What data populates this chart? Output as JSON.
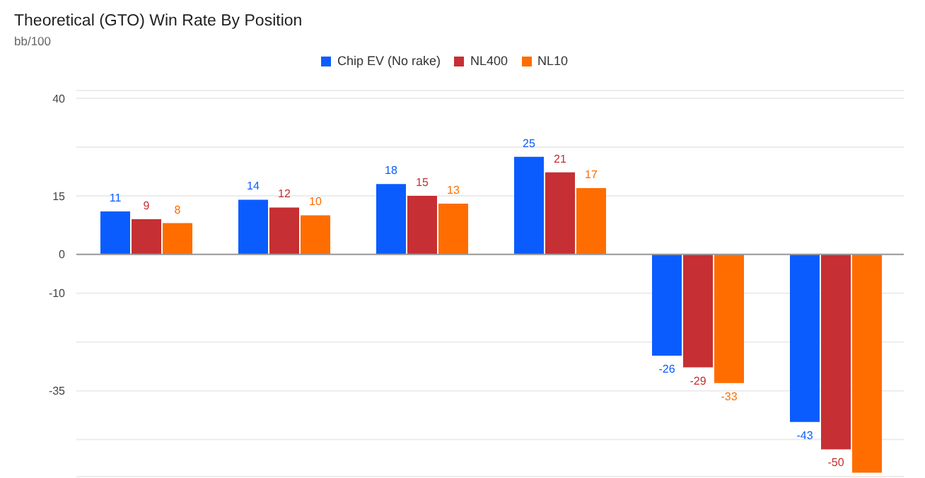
{
  "chart_data": {
    "type": "bar",
    "title": "Theoretical (GTO) Win Rate By Position",
    "subtitle": "bb/100",
    "categories": [
      null,
      null,
      null,
      null,
      null,
      null
    ],
    "series": [
      {
        "name": "Chip EV (No rake)",
        "color": "#0b5cff",
        "values": [
          11,
          14,
          18,
          25,
          -26,
          -43
        ],
        "value_labels": [
          "11",
          "14",
          "18",
          "25",
          "-26",
          "-43"
        ]
      },
      {
        "name": "NL400",
        "color": "#c62f33",
        "values": [
          9,
          12,
          15,
          21,
          -29,
          -50
        ],
        "value_labels": [
          "9",
          "12",
          "15",
          "21",
          "-29",
          "-50"
        ]
      },
      {
        "name": "NL10",
        "color": "#ff6d00",
        "values": [
          8,
          10,
          13,
          17,
          -33,
          -56
        ],
        "value_labels": [
          "8",
          "10",
          "13",
          "17",
          "-33",
          null
        ]
      }
    ],
    "ylim": [
      -57,
      42
    ],
    "yticks": [
      40,
      {
        "value": 27.5,
        "label": null
      },
      15,
      0,
      -10,
      {
        "value": -22.5,
        "label": null
      },
      -35,
      {
        "value": -47.5,
        "label": null
      }
    ],
    "grid": "y",
    "legend": "top"
  }
}
